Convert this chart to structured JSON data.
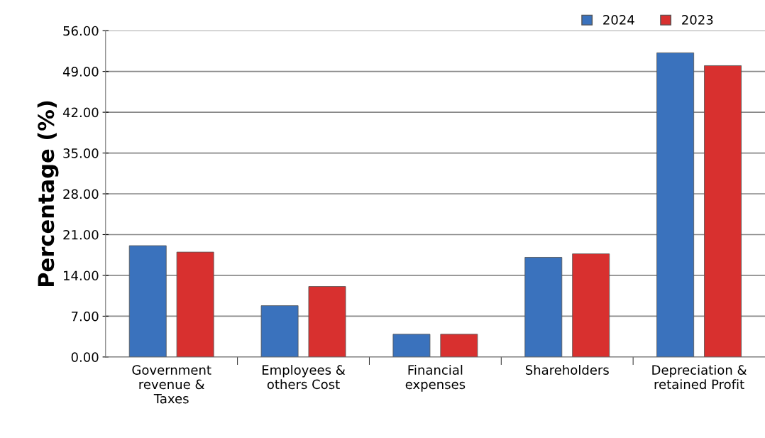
{
  "chart_data": {
    "type": "bar",
    "ylabel": "Percentage (%)",
    "categories": [
      "Government\nrevenue &\nTaxes",
      "Employees &\nothers Cost",
      "Financial\nexpenses",
      "Shareholders",
      "Depreciation &\nretained Profit"
    ],
    "series": [
      {
        "name": "2024",
        "color": "#3a72bd",
        "values": [
          19.1,
          8.8,
          3.9,
          17.1,
          52.2
        ]
      },
      {
        "name": "2023",
        "color": "#d8302f",
        "values": [
          18.0,
          12.1,
          3.9,
          17.7,
          50.0
        ]
      }
    ],
    "ylim": [
      0,
      56
    ],
    "yticks": [
      {
        "value": 0,
        "label": "0.00"
      },
      {
        "value": 7,
        "label": "7.00"
      },
      {
        "value": 14,
        "label": "14.00"
      },
      {
        "value": 21,
        "label": "21.00"
      },
      {
        "value": 28,
        "label": "28.00"
      },
      {
        "value": 35,
        "label": "35.00"
      },
      {
        "value": 42,
        "label": "42.00"
      },
      {
        "value": 49,
        "label": "49.00"
      },
      {
        "value": 56,
        "label": "56.00"
      }
    ],
    "grid": "y",
    "legend": "top right"
  }
}
